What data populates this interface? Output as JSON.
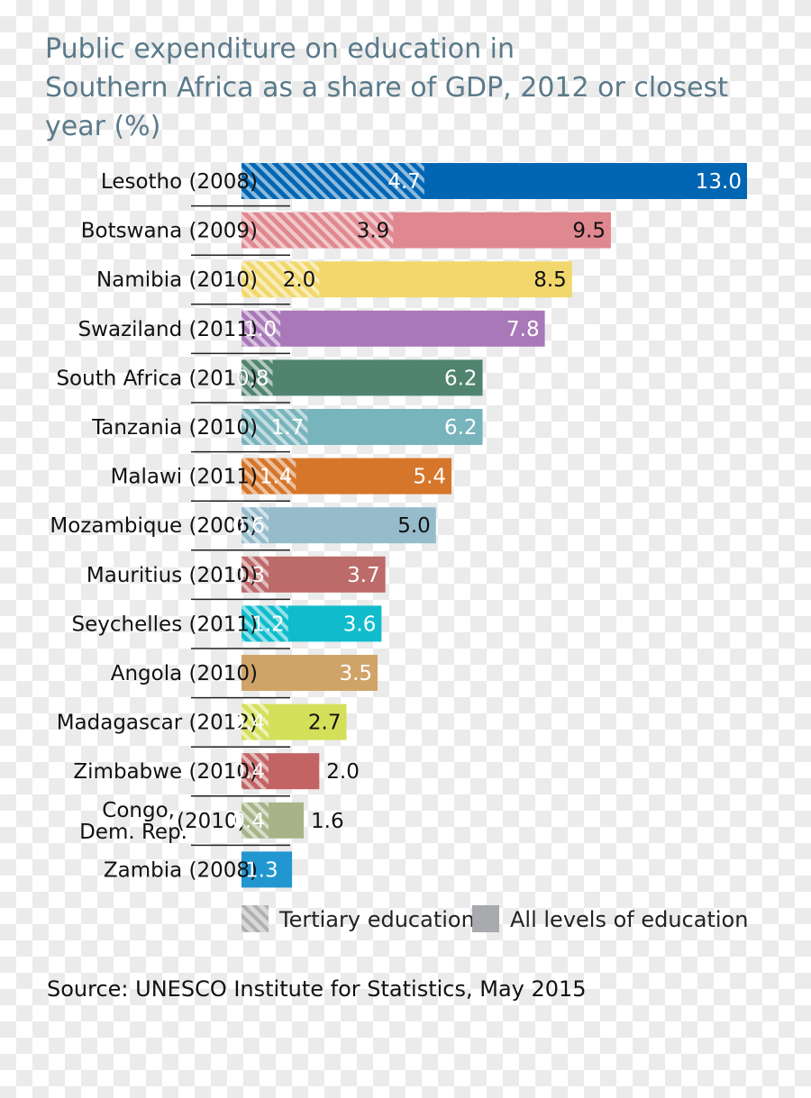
{
  "chart_data": {
    "type": "bar",
    "orientation": "horizontal",
    "title_lines": [
      "Public expenditure on education in",
      "Southern Africa as a share of GDP, 2012 or closest",
      "year (%)"
    ],
    "categories": [
      {
        "lines": [
          "Lesotho (2008)"
        ]
      },
      {
        "lines": [
          "Botswana (2009)"
        ]
      },
      {
        "lines": [
          "Namibia (2010)"
        ]
      },
      {
        "lines": [
          "Swaziland (2011)"
        ]
      },
      {
        "lines": [
          "South Africa (2010)"
        ]
      },
      {
        "lines": [
          "Tanzania (2010)"
        ]
      },
      {
        "lines": [
          "Malawi (2011)"
        ]
      },
      {
        "lines": [
          "Mozambique (2006)"
        ]
      },
      {
        "lines": [
          "Mauritius (2010)"
        ]
      },
      {
        "lines": [
          "Seychelles (2011)"
        ]
      },
      {
        "lines": [
          "Angola (2010)"
        ]
      },
      {
        "lines": [
          "Madagascar (2012)"
        ]
      },
      {
        "lines": [
          "Zimbabwe (2010)"
        ]
      },
      {
        "lines": [
          "Congo,",
          "Dem. Rep."
        ],
        "suffix": "(2010)"
      },
      {
        "lines": [
          "Zambia (2008)"
        ]
      }
    ],
    "series": [
      {
        "name": "Tertiary education",
        "values": [
          4.7,
          3.9,
          2.0,
          1.0,
          0.8,
          1.7,
          1.4,
          0.6,
          0.3,
          1.2,
          null,
          0.4,
          0.4,
          0.4,
          null
        ],
        "value_labels": [
          "4.7",
          "3.9",
          "2.0",
          "1.0",
          "0.8",
          "1.7",
          "1.4",
          "0.6",
          "0.3",
          "1.2",
          "",
          "0.4",
          "0.4",
          "0.4",
          ""
        ]
      },
      {
        "name": "All levels of education",
        "values": [
          13.0,
          9.5,
          8.5,
          7.8,
          6.2,
          6.2,
          5.4,
          5.0,
          3.7,
          3.6,
          3.5,
          2.7,
          2.0,
          1.6,
          1.3
        ],
        "value_labels": [
          "13.0",
          "9.5",
          "8.5",
          "7.8",
          "6.2",
          "6.2",
          "5.4",
          "5.0",
          "3.7",
          "3.6",
          "3.5",
          "2.7",
          "2.0",
          "1.6",
          "1.3"
        ]
      }
    ],
    "colors": [
      "#0066b3",
      "#e08890",
      "#f2d86c",
      "#a878b8",
      "#518470",
      "#78b4bc",
      "#d6762a",
      "#96bccc",
      "#bd6a6a",
      "#10bccc",
      "#d0a468",
      "#d4e05a",
      "#c26464",
      "#a8b488",
      "#2296d0"
    ],
    "value_label_colors": [
      "#ffffff",
      "#111111",
      "#111111",
      "#ffffff",
      "#ffffff",
      "#ffffff",
      "#ffffff",
      "#111111",
      "#ffffff",
      "#ffffff",
      "#ffffff",
      "#111111",
      "#111111",
      "#111111",
      "#ffffff"
    ],
    "xlim": [
      0,
      13.0
    ],
    "grid": false,
    "legend": {
      "placement": "bottom",
      "items": [
        {
          "label": "Tertiary education",
          "pattern": "hatched",
          "color": "#b8b8b8"
        },
        {
          "label": "All levels of education",
          "pattern": "solid",
          "color": "#a8aaae"
        }
      ]
    },
    "source": "Source: UNESCO Institute for Statistics, May 2015"
  }
}
